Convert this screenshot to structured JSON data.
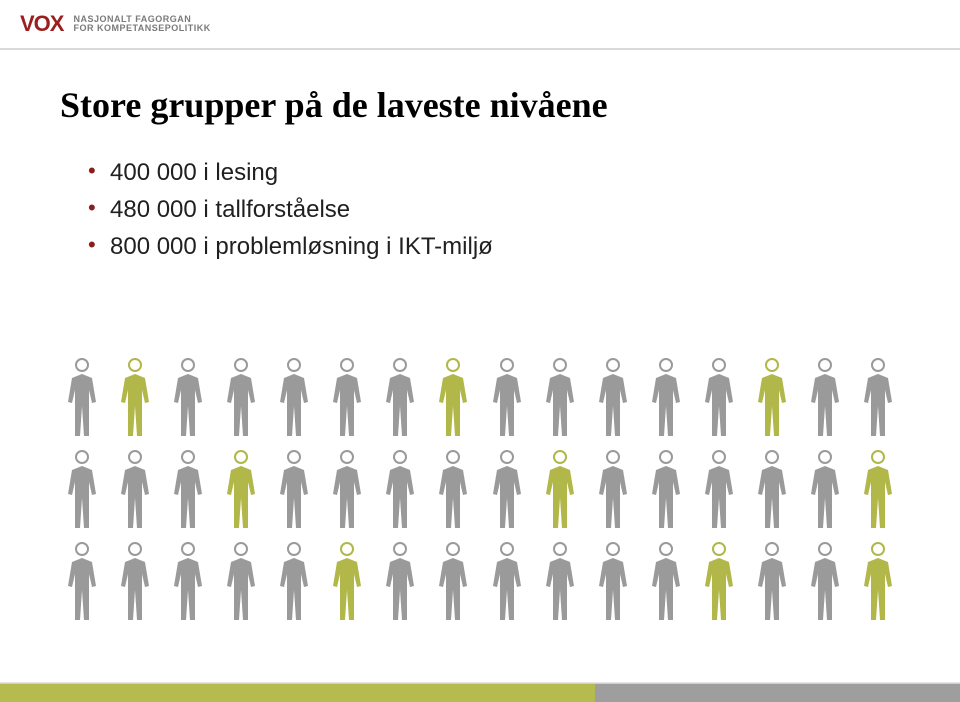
{
  "header": {
    "logo_mark": "VOX",
    "logo_line1": "NASJONALT FAGORGAN",
    "logo_line2": "FOR KOMPETANSEPOLITIKK"
  },
  "title": "Store grupper på de laveste nivåene",
  "bullets": [
    "400 000 i lesing",
    "480 000 i tallforståelse",
    "800 000 i problemløsning i IKT-miljø"
  ],
  "bullet_marker_color": "#8a1d1d",
  "people": {
    "columns": 16,
    "rows": [
      [
        1,
        0,
        1,
        1,
        1,
        1,
        1,
        0,
        1,
        1,
        1,
        1,
        1,
        0,
        1,
        1
      ],
      [
        1,
        1,
        1,
        0,
        1,
        1,
        1,
        1,
        1,
        0,
        1,
        1,
        1,
        1,
        1,
        0
      ],
      [
        1,
        1,
        1,
        1,
        1,
        0,
        1,
        1,
        1,
        1,
        1,
        1,
        0,
        1,
        1,
        0
      ]
    ],
    "colors": {
      "0": "#b2b749",
      "1": "#9a9a9a"
    },
    "head_stroke_width": 2
  },
  "footer": {
    "left_color": "#b6bb4f",
    "right_color": "#9e9e9e"
  }
}
